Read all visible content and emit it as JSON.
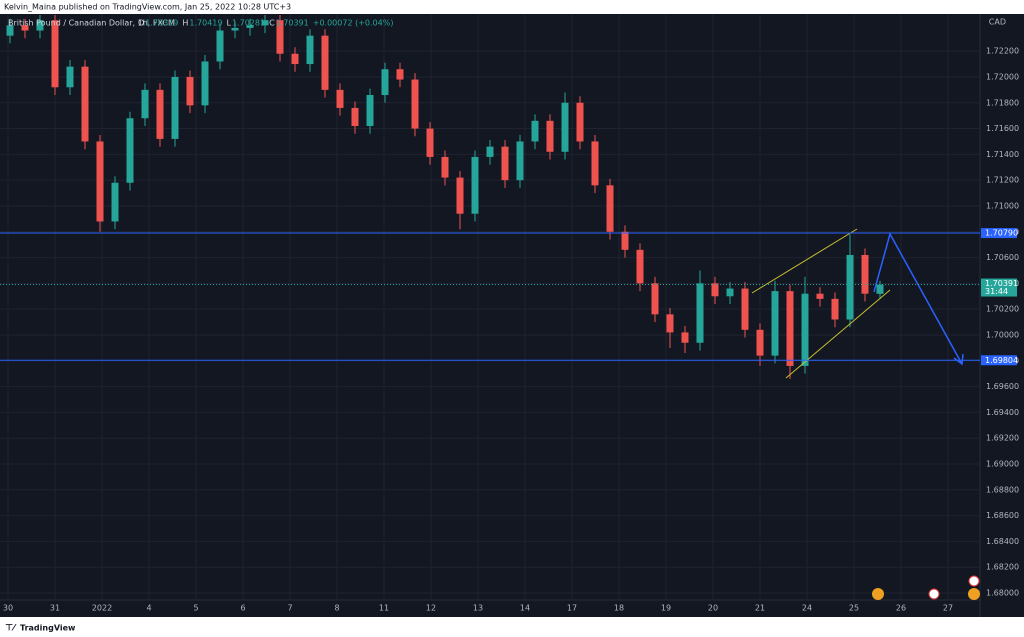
{
  "header": {
    "publisher": "Kelvin_Maina published on TradingView.com, Jan 25, 2022 10:28 UTC+3",
    "footer": "TradingView"
  },
  "chart_data": {
    "type": "candlestick",
    "legend": {
      "symbol": "British Pound / Canadian Dollar, 1h, FXCM",
      "items": [
        {
          "key": "O",
          "value": "1.70319"
        },
        {
          "key": "H",
          "value": "1.70419"
        },
        {
          "key": "L",
          "value": "1.70281"
        },
        {
          "key": "C",
          "value": "1.70391"
        }
      ],
      "change": "+0.00072 (+0.04%)"
    },
    "currency": "CAD",
    "categories": [
      "30",
      "31",
      "2022",
      "4",
      "5",
      "6",
      "7",
      "8",
      "11",
      "12",
      "13",
      "14",
      "17",
      "18",
      "19",
      "20",
      "21",
      "24",
      "25",
      "26",
      "27"
    ],
    "series": [
      {
        "name": "GBPCAD",
        "up_color": "#26a69a",
        "down_color": "#ef5350",
        "open": [
          1.7232,
          1.724,
          1.7236,
          1.7244,
          1.7192,
          1.7208,
          1.715,
          1.7088,
          1.7118,
          1.7168,
          1.719,
          1.7152,
          1.72,
          1.7178,
          1.7212,
          1.7236,
          1.7238,
          1.724,
          1.7244,
          1.7218,
          1.721,
          1.7232,
          1.719,
          1.7176,
          1.7162,
          1.7186,
          1.7206,
          1.7198,
          1.716,
          1.7138,
          1.7122,
          1.7094,
          1.7138,
          1.7146,
          1.712,
          1.715,
          1.7166,
          1.7142,
          1.718,
          1.715,
          1.7116,
          1.708,
          1.7066,
          1.704,
          1.7016,
          1.7002,
          1.6994,
          1.704,
          1.703,
          1.7036,
          1.7004,
          1.6984,
          1.7034,
          1.6976,
          1.7032,
          1.7028,
          1.7012,
          1.7062,
          1.70319
        ],
        "high": [
          1.7245,
          1.7245,
          1.7248,
          1.7248,
          1.7213,
          1.7213,
          1.7155,
          1.7123,
          1.7173,
          1.7195,
          1.7195,
          1.7205,
          1.7205,
          1.7217,
          1.7241,
          1.7243,
          1.7245,
          1.7248,
          1.7248,
          1.7223,
          1.7237,
          1.7237,
          1.7195,
          1.7181,
          1.7191,
          1.7211,
          1.7211,
          1.7203,
          1.7165,
          1.7143,
          1.7127,
          1.7143,
          1.7151,
          1.7151,
          1.7155,
          1.7171,
          1.7171,
          1.7188,
          1.7185,
          1.7155,
          1.7121,
          1.7085,
          1.7071,
          1.7045,
          1.7021,
          1.7007,
          1.705,
          1.7045,
          1.7041,
          1.7041,
          1.7009,
          1.7042,
          1.7039,
          1.7045,
          1.7037,
          1.7033,
          1.7078,
          1.7067,
          1.70419
        ],
        "low": [
          1.7226,
          1.723,
          1.723,
          1.7186,
          1.7186,
          1.7144,
          1.708,
          1.7082,
          1.7112,
          1.7162,
          1.7146,
          1.7146,
          1.7172,
          1.7172,
          1.7206,
          1.723,
          1.7232,
          1.7234,
          1.7212,
          1.7204,
          1.7204,
          1.7184,
          1.717,
          1.7156,
          1.7156,
          1.718,
          1.7192,
          1.7154,
          1.7132,
          1.7116,
          1.7082,
          1.7088,
          1.7132,
          1.7114,
          1.7114,
          1.7144,
          1.7136,
          1.7136,
          1.7144,
          1.711,
          1.7074,
          1.706,
          1.7034,
          1.701,
          1.699,
          1.6986,
          1.6988,
          1.7024,
          1.7024,
          1.6998,
          1.6976,
          1.6978,
          1.6966,
          1.697,
          1.7022,
          1.7006,
          1.7006,
          1.7026,
          1.70281
        ],
        "close": [
          1.724,
          1.7236,
          1.7244,
          1.7192,
          1.7208,
          1.715,
          1.7088,
          1.7118,
          1.7168,
          1.719,
          1.7152,
          1.72,
          1.7178,
          1.7212,
          1.7236,
          1.7238,
          1.724,
          1.7244,
          1.7218,
          1.721,
          1.7232,
          1.719,
          1.7176,
          1.7162,
          1.7186,
          1.7206,
          1.7198,
          1.716,
          1.7138,
          1.7122,
          1.7094,
          1.7138,
          1.7146,
          1.712,
          1.715,
          1.7166,
          1.7142,
          1.718,
          1.715,
          1.7116,
          1.708,
          1.7066,
          1.704,
          1.7016,
          1.7002,
          1.6994,
          1.704,
          1.703,
          1.7036,
          1.7004,
          1.6984,
          1.7034,
          1.6976,
          1.7032,
          1.7028,
          1.7012,
          1.7062,
          1.7032,
          1.70391
        ]
      }
    ],
    "ylim": [
      1.67814,
      1.72488
    ],
    "yticks": [
      {
        "value": 1.68,
        "label": "1.68000"
      },
      {
        "value": 1.682,
        "label": "1.68200"
      },
      {
        "value": 1.684,
        "label": "1.68400"
      },
      {
        "value": 1.686,
        "label": "1.68600"
      },
      {
        "value": 1.688,
        "label": "1.68800"
      },
      {
        "value": 1.69,
        "label": "1.69000"
      },
      {
        "value": 1.692,
        "label": "1.69200"
      },
      {
        "value": 1.694,
        "label": "1.69400"
      },
      {
        "value": 1.696,
        "label": "1.69600"
      },
      {
        "value": 1.698,
        "label": "1.69800"
      },
      {
        "value": 1.7,
        "label": "1.70000"
      },
      {
        "value": 1.702,
        "label": "1.70200"
      },
      {
        "value": 1.704,
        "label": "1.70400"
      },
      {
        "value": 1.706,
        "label": "1.70600"
      },
      {
        "value": 1.708,
        "label": "1.70800"
      },
      {
        "value": 1.71,
        "label": "1.71000"
      },
      {
        "value": 1.712,
        "label": "1.71200"
      },
      {
        "value": 1.714,
        "label": "1.71400"
      },
      {
        "value": 1.716,
        "label": "1.71600"
      },
      {
        "value": 1.718,
        "label": "1.71800"
      },
      {
        "value": 1.72,
        "label": "1.72000"
      },
      {
        "value": 1.722,
        "label": "1.72200"
      }
    ],
    "levels": [
      {
        "value": 1.7079,
        "label": "1.70790",
        "color": "#2962ff"
      },
      {
        "value": 1.69804,
        "label": "1.69804",
        "color": "#2962ff"
      }
    ],
    "last_price": {
      "value": 1.70391,
      "label": "1.70391",
      "countdown": "31:44",
      "color": "#26a69a"
    },
    "grid": true
  }
}
